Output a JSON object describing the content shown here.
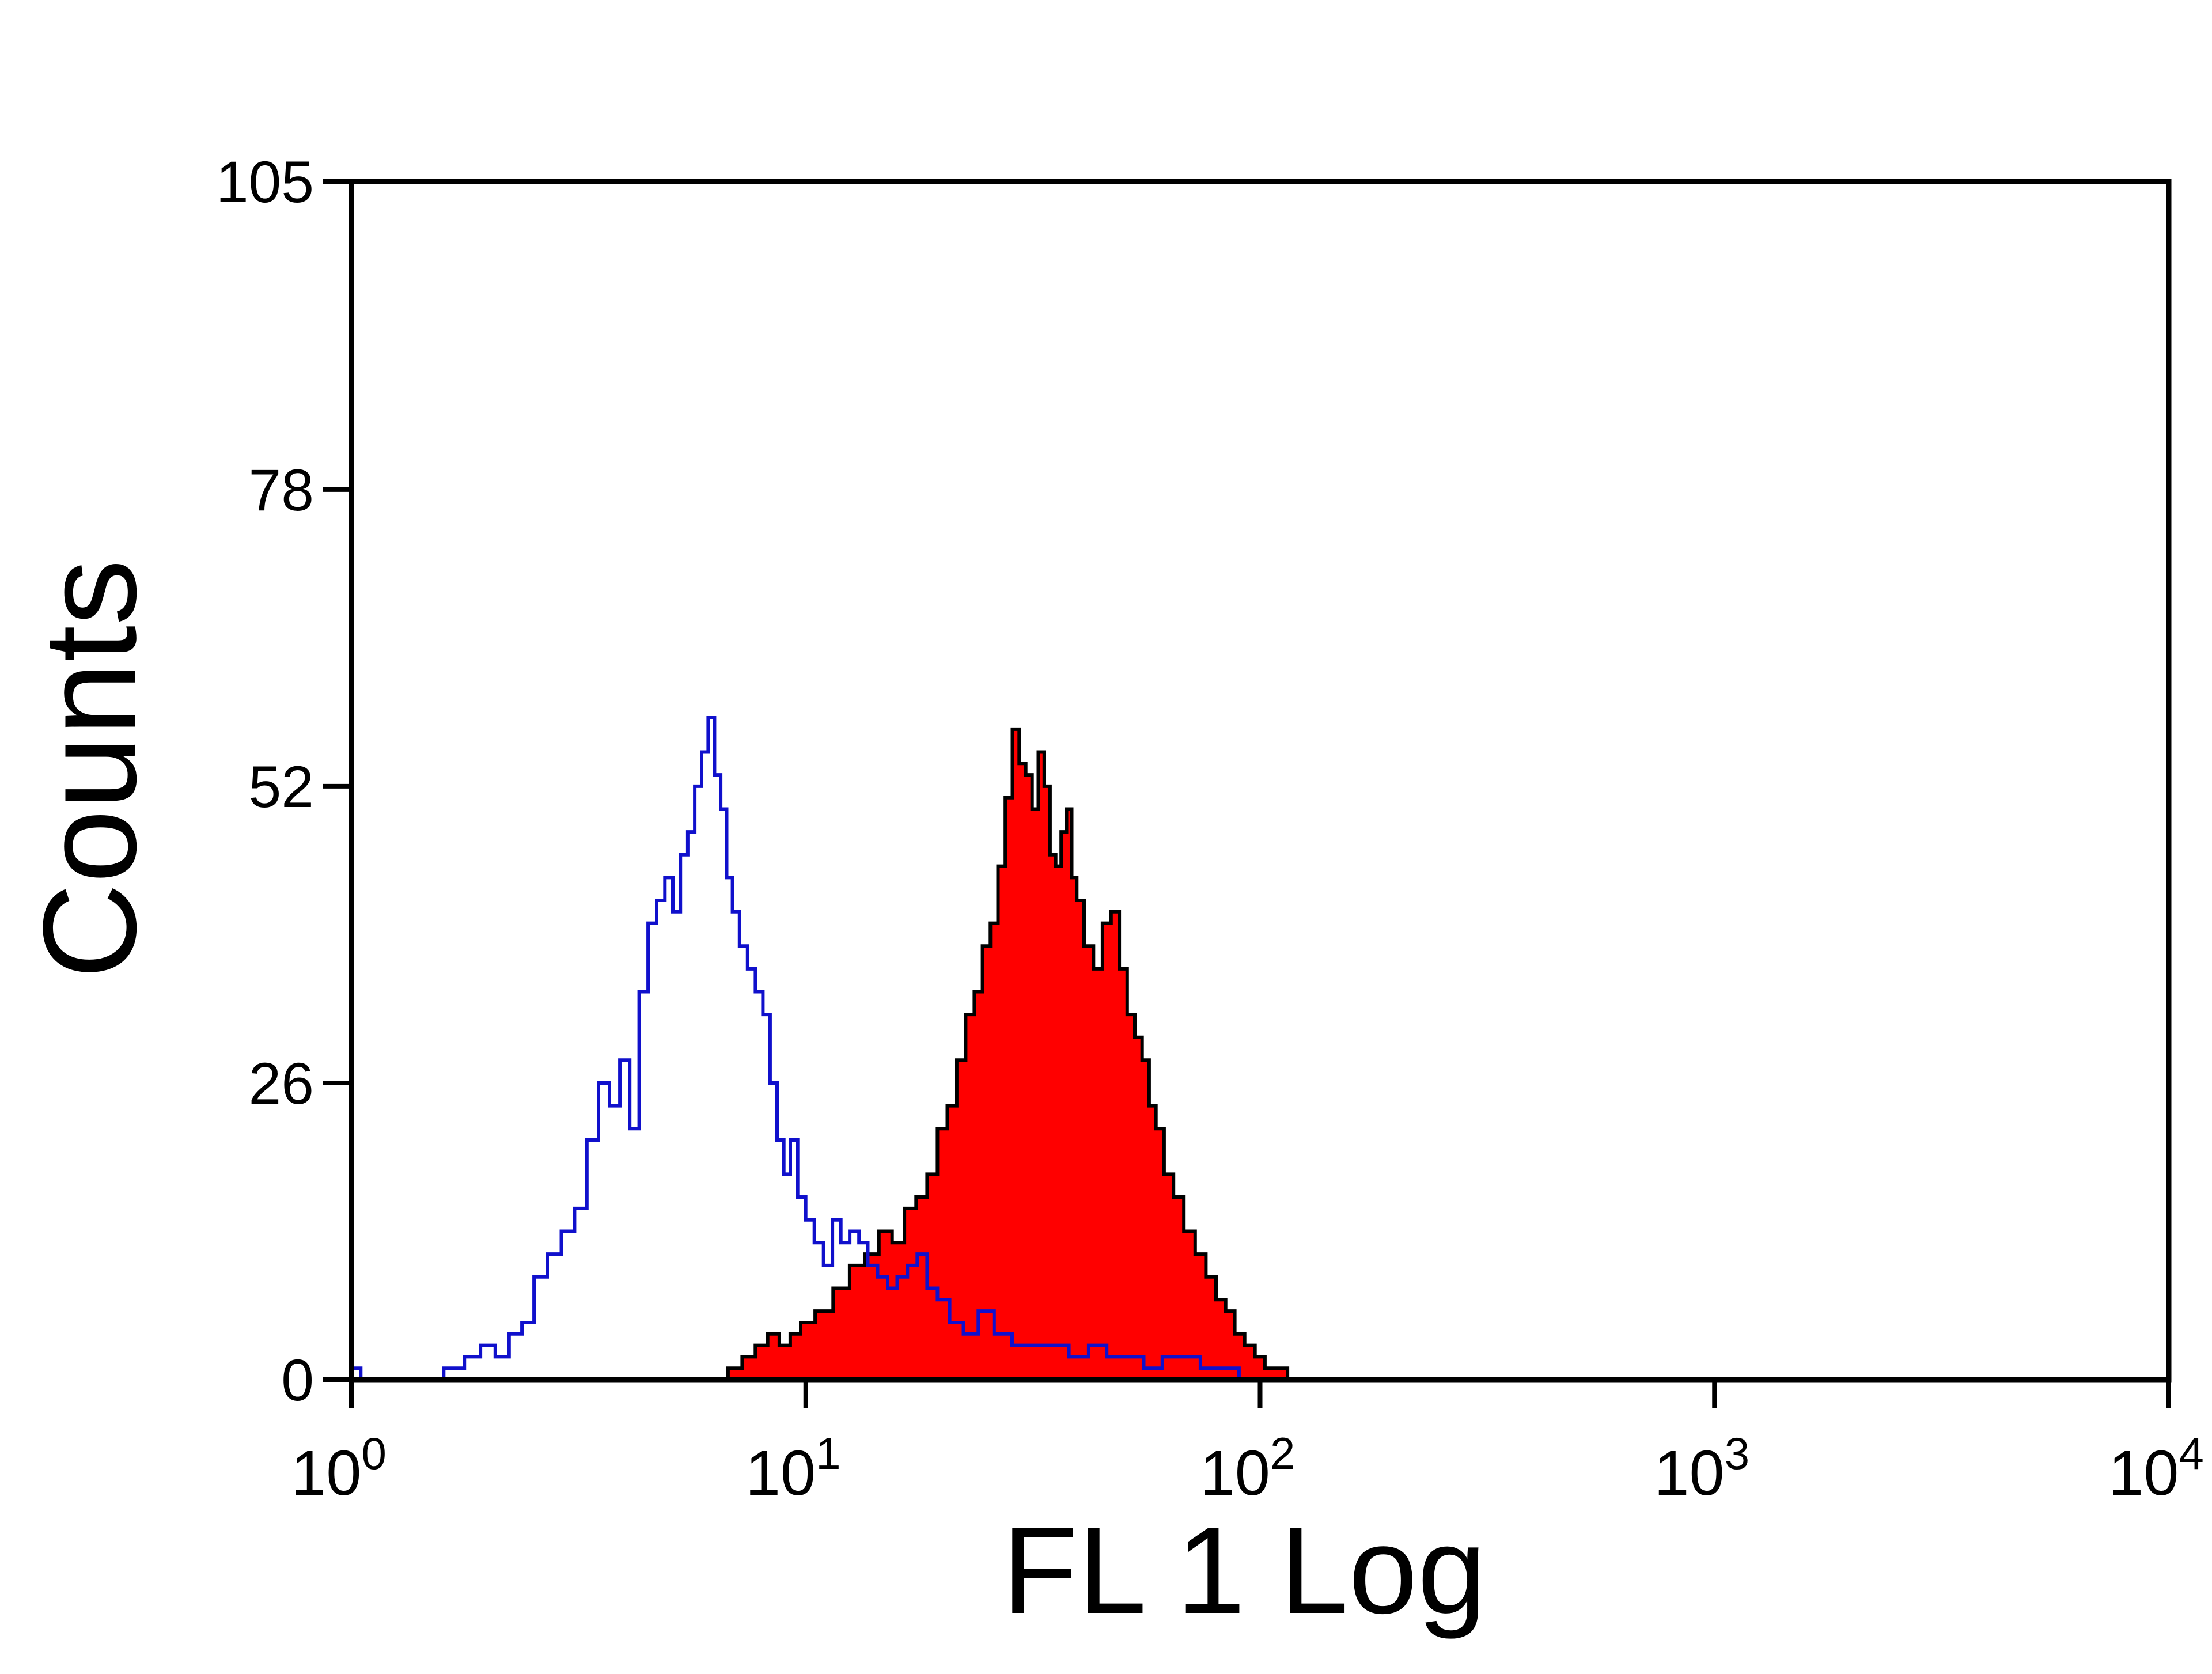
{
  "chart_data": {
    "type": "area",
    "xscale": "log",
    "xlabel": "FL 1 Log",
    "ylabel": "Counts",
    "xlim": [
      1,
      10000
    ],
    "ylim": [
      0,
      105
    ],
    "grid": false,
    "x_ticks": [
      {
        "value": 1,
        "base": "10",
        "exp": "0"
      },
      {
        "value": 10,
        "base": "10",
        "exp": "1"
      },
      {
        "value": 100,
        "base": "10",
        "exp": "2"
      },
      {
        "value": 1000,
        "base": "10",
        "exp": "3"
      },
      {
        "value": 10000,
        "base": "10",
        "exp": "4"
      }
    ],
    "y_ticks": [
      "0",
      "26",
      "52",
      "78",
      "105"
    ],
    "series": [
      {
        "style": "outline",
        "color": "#1010cc",
        "x": [
          1.0,
          1.1,
          1.25,
          1.5,
          1.7,
          1.85,
          2.0,
          2.15,
          2.3,
          2.45,
          2.6,
          2.8,
          3.0,
          3.2,
          3.4,
          3.6,
          3.8,
          4.0,
          4.2,
          4.4,
          4.6,
          4.8,
          5.0,
          5.2,
          5.4,
          5.6,
          5.8,
          6.0,
          6.2,
          6.4,
          6.6,
          6.8,
          7.0,
          7.3,
          7.6,
          7.9,
          8.2,
          8.5,
          8.8,
          9.1,
          9.4,
          9.8,
          10.2,
          10.7,
          11.2,
          11.7,
          12.2,
          12.8,
          13.4,
          14.0,
          14.8,
          15.5,
          16.3,
          17.2,
          18.0,
          19.0,
          20.0,
          21.5,
          23.0,
          25.0,
          27.0,
          30.0,
          33.0,
          36.0,
          40.0,
          44.0,
          48.0,
          53.0,
          58.0,
          64.0,
          70.0,
          78.0,
          85.0,
          95.0
        ],
        "y": [
          1,
          0,
          0,
          0,
          1,
          2,
          3,
          2,
          4,
          5,
          9,
          11,
          13,
          15,
          21,
          26,
          24,
          28,
          22,
          34,
          40,
          42,
          44,
          41,
          46,
          48,
          52,
          55,
          58,
          53,
          50,
          44,
          41,
          38,
          36,
          34,
          32,
          26,
          21,
          18,
          21,
          16,
          14,
          12,
          10,
          14,
          12,
          13,
          12,
          10,
          9,
          8,
          9,
          10,
          11,
          8,
          7,
          5,
          4,
          6,
          4,
          3,
          3,
          3,
          2,
          3,
          2,
          2,
          1,
          2,
          2,
          1,
          1,
          0
        ]
      },
      {
        "style": "filled",
        "color": "#ff0000",
        "outline": "#000000",
        "x": [
          6.5,
          7.0,
          7.5,
          8.0,
          8.5,
          9.0,
          9.5,
          10.0,
          11.0,
          12.0,
          13.0,
          14.0,
          15.0,
          16.0,
          17.0,
          18.0,
          19.0,
          20.0,
          21.0,
          22.0,
          23.0,
          24.0,
          25.0,
          26.0,
          27.0,
          28.0,
          29.0,
          30.0,
          31.0,
          32.0,
          33.0,
          34.0,
          35.0,
          36.0,
          37.0,
          38.0,
          39.0,
          40.0,
          42.0,
          44.0,
          46.0,
          48.0,
          50.0,
          52.0,
          54.0,
          56.0,
          58.0,
          60.0,
          63.0,
          66.0,
          70.0,
          74.0,
          78.0,
          82.0,
          86.0,
          90.0,
          95.0,
          100.0,
          105.0,
          110.0,
          120.0
        ],
        "y": [
          0,
          1,
          2,
          3,
          4,
          3,
          4,
          5,
          6,
          8,
          10,
          11,
          13,
          12,
          15,
          16,
          18,
          22,
          24,
          28,
          32,
          34,
          38,
          40,
          45,
          51,
          57,
          54,
          53,
          50,
          55,
          52,
          46,
          45,
          48,
          50,
          44,
          42,
          38,
          36,
          40,
          41,
          36,
          32,
          30,
          28,
          24,
          22,
          18,
          16,
          13,
          11,
          9,
          7,
          6,
          4,
          3,
          2,
          1,
          1,
          0
        ]
      }
    ]
  }
}
